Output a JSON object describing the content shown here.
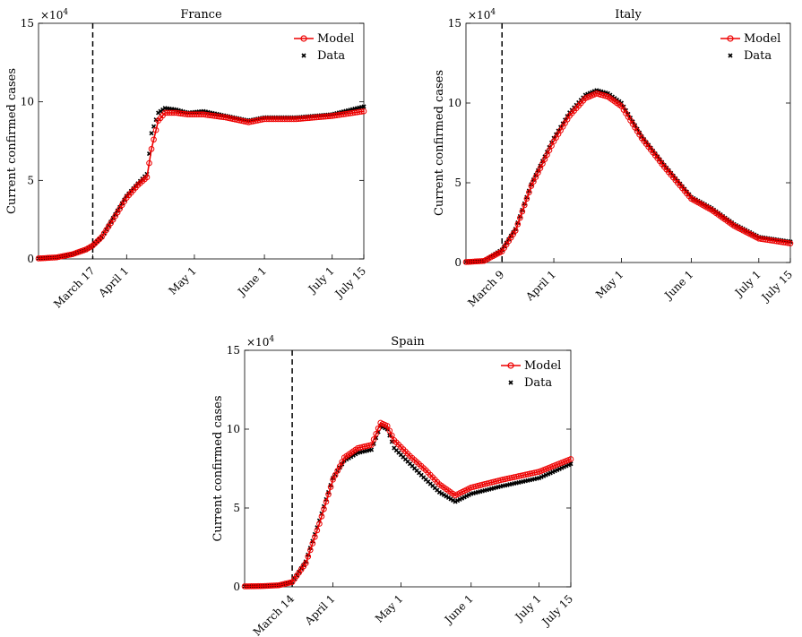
{
  "chart_data": [
    {
      "type": "line",
      "title": "France",
      "ylabel": "Current confirmed cases",
      "y_multiplier": "×10",
      "y_multiplier_exp": "4",
      "ylim": [
        0,
        15
      ],
      "yticks": [
        0,
        5,
        10,
        15
      ],
      "xlim": [
        "2020-02-22",
        "2020-07-15"
      ],
      "xticks": [
        {
          "date": "2020-03-17",
          "label": "March 17"
        },
        {
          "date": "2020-04-01",
          "label": "April 1"
        },
        {
          "date": "2020-05-01",
          "label": "May 1"
        },
        {
          "date": "2020-06-01",
          "label": "June 1"
        },
        {
          "date": "2020-07-01",
          "label": "July 1"
        },
        {
          "date": "2020-07-15",
          "label": "July 15"
        }
      ],
      "vline": "2020-03-17",
      "legend": {
        "position": "top-right",
        "model": "Model",
        "data": "Data"
      },
      "series": [
        {
          "name": "Model",
          "style": "red-line-circles",
          "x": [
            "2020-02-22",
            "2020-03-01",
            "2020-03-08",
            "2020-03-14",
            "2020-03-17",
            "2020-03-21",
            "2020-03-26",
            "2020-04-01",
            "2020-04-06",
            "2020-04-10",
            "2020-04-12",
            "2020-04-15",
            "2020-04-18",
            "2020-04-23",
            "2020-04-28",
            "2020-05-05",
            "2020-05-15",
            "2020-05-25",
            "2020-06-01",
            "2020-06-15",
            "2020-07-01",
            "2020-07-15"
          ],
          "values": [
            0.03,
            0.1,
            0.3,
            0.6,
            0.85,
            1.4,
            2.5,
            3.9,
            4.7,
            5.2,
            7.0,
            8.8,
            9.3,
            9.3,
            9.2,
            9.2,
            9.0,
            8.7,
            8.9,
            8.9,
            9.1,
            9.4
          ]
        },
        {
          "name": "Data",
          "style": "black-x",
          "x": [
            "2020-02-22",
            "2020-03-01",
            "2020-03-08",
            "2020-03-14",
            "2020-03-17",
            "2020-03-21",
            "2020-03-26",
            "2020-04-01",
            "2020-04-06",
            "2020-04-10",
            "2020-04-12",
            "2020-04-15",
            "2020-04-18",
            "2020-04-23",
            "2020-04-28",
            "2020-05-05",
            "2020-05-15",
            "2020-05-25",
            "2020-06-01",
            "2020-06-15",
            "2020-07-01",
            "2020-07-15"
          ],
          "values": [
            0.03,
            0.1,
            0.3,
            0.6,
            0.85,
            1.4,
            2.6,
            4.0,
            4.8,
            5.4,
            8.0,
            9.3,
            9.6,
            9.5,
            9.3,
            9.4,
            9.1,
            8.8,
            9.0,
            9.0,
            9.2,
            9.7
          ]
        }
      ]
    },
    {
      "type": "line",
      "title": "Italy",
      "ylabel": "Current confirmed cases",
      "y_multiplier": "×10",
      "y_multiplier_exp": "4",
      "ylim": [
        0,
        15
      ],
      "yticks": [
        0,
        5,
        10,
        15
      ],
      "xlim": [
        "2020-02-22",
        "2020-07-15"
      ],
      "xticks": [
        {
          "date": "2020-03-09",
          "label": "March 9"
        },
        {
          "date": "2020-04-01",
          "label": "April 1"
        },
        {
          "date": "2020-05-01",
          "label": "May 1"
        },
        {
          "date": "2020-06-01",
          "label": "June 1"
        },
        {
          "date": "2020-07-01",
          "label": "July 1"
        },
        {
          "date": "2020-07-15",
          "label": "July 15"
        }
      ],
      "vline": "2020-03-09",
      "legend": {
        "position": "top-right",
        "model": "Model",
        "data": "Data"
      },
      "series": [
        {
          "name": "Model",
          "style": "red-line-circles",
          "x": [
            "2020-02-22",
            "2020-03-01",
            "2020-03-09",
            "2020-03-15",
            "2020-03-22",
            "2020-04-01",
            "2020-04-08",
            "2020-04-15",
            "2020-04-20",
            "2020-04-25",
            "2020-05-01",
            "2020-05-10",
            "2020-05-20",
            "2020-06-01",
            "2020-06-10",
            "2020-06-20",
            "2020-07-01",
            "2020-07-15"
          ],
          "values": [
            0.03,
            0.1,
            0.7,
            2.0,
            4.8,
            7.6,
            9.2,
            10.3,
            10.6,
            10.4,
            9.8,
            7.8,
            6.0,
            4.0,
            3.3,
            2.3,
            1.5,
            1.2
          ]
        },
        {
          "name": "Data",
          "style": "black-x",
          "x": [
            "2020-02-22",
            "2020-03-01",
            "2020-03-09",
            "2020-03-15",
            "2020-03-22",
            "2020-04-01",
            "2020-04-08",
            "2020-04-15",
            "2020-04-20",
            "2020-04-25",
            "2020-05-01",
            "2020-05-10",
            "2020-05-20",
            "2020-06-01",
            "2020-06-10",
            "2020-06-20",
            "2020-07-01",
            "2020-07-15"
          ],
          "values": [
            0.03,
            0.1,
            0.8,
            2.1,
            4.9,
            7.8,
            9.4,
            10.5,
            10.8,
            10.6,
            10.0,
            7.9,
            6.1,
            4.1,
            3.4,
            2.4,
            1.6,
            1.3
          ]
        }
      ]
    },
    {
      "type": "line",
      "title": "Spain",
      "ylabel": "Current confirmed cases",
      "y_multiplier": "×10",
      "y_multiplier_exp": "4",
      "ylim": [
        0,
        15
      ],
      "yticks": [
        0,
        5,
        10,
        15
      ],
      "xlim": [
        "2020-02-22",
        "2020-07-15"
      ],
      "xticks": [
        {
          "date": "2020-03-14",
          "label": "March 14"
        },
        {
          "date": "2020-04-01",
          "label": "April 1"
        },
        {
          "date": "2020-05-01",
          "label": "May 1"
        },
        {
          "date": "2020-06-01",
          "label": "June 1"
        },
        {
          "date": "2020-07-01",
          "label": "July 1"
        },
        {
          "date": "2020-07-15",
          "label": "July 15"
        }
      ],
      "vline": "2020-03-14",
      "legend": {
        "position": "top-right",
        "model": "Model",
        "data": "Data"
      },
      "series": [
        {
          "name": "Model",
          "style": "red-line-circles",
          "x": [
            "2020-02-22",
            "2020-03-01",
            "2020-03-08",
            "2020-03-14",
            "2020-03-20",
            "2020-03-26",
            "2020-04-01",
            "2020-04-06",
            "2020-04-12",
            "2020-04-18",
            "2020-04-22",
            "2020-04-25",
            "2020-04-28",
            "2020-05-05",
            "2020-05-12",
            "2020-05-18",
            "2020-05-25",
            "2020-06-01",
            "2020-06-15",
            "2020-07-01",
            "2020-07-15"
          ],
          "values": [
            0.03,
            0.05,
            0.1,
            0.3,
            1.5,
            4.0,
            6.8,
            8.2,
            8.8,
            9.0,
            10.4,
            10.2,
            9.3,
            8.3,
            7.4,
            6.5,
            5.8,
            6.3,
            6.8,
            7.3,
            8.1
          ]
        },
        {
          "name": "Data",
          "style": "black-x",
          "x": [
            "2020-02-22",
            "2020-03-01",
            "2020-03-08",
            "2020-03-14",
            "2020-03-20",
            "2020-03-26",
            "2020-04-01",
            "2020-04-06",
            "2020-04-12",
            "2020-04-18",
            "2020-04-22",
            "2020-04-25",
            "2020-04-28",
            "2020-05-05",
            "2020-05-12",
            "2020-05-18",
            "2020-05-25",
            "2020-06-01",
            "2020-06-15",
            "2020-07-01",
            "2020-07-15"
          ],
          "values": [
            0.03,
            0.05,
            0.1,
            0.3,
            1.6,
            4.2,
            6.9,
            8.0,
            8.5,
            8.7,
            10.2,
            10.0,
            8.8,
            7.8,
            6.8,
            6.0,
            5.4,
            5.9,
            6.4,
            6.9,
            7.8
          ]
        }
      ]
    }
  ]
}
